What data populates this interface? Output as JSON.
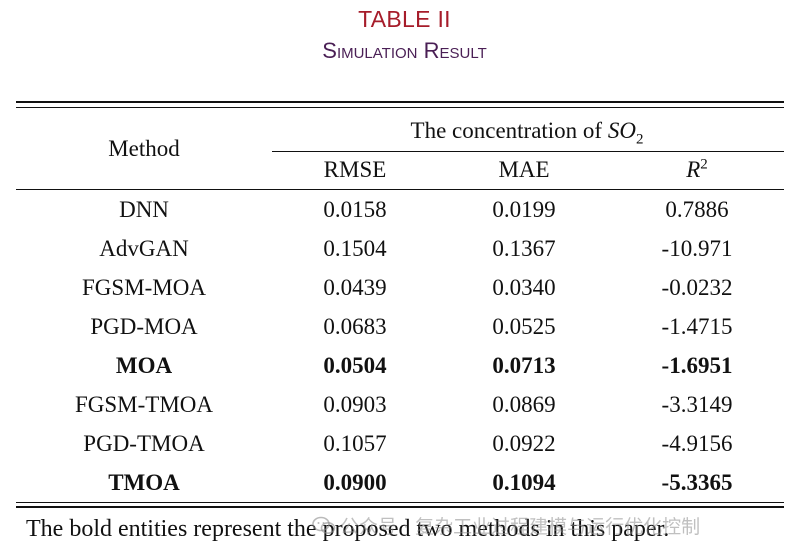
{
  "caption": {
    "label": "TABLE II",
    "title": "Simulation Result"
  },
  "table": {
    "method_header": "Method",
    "group_header": {
      "prefix": "The concentration of ",
      "species": "SO",
      "subscript": "2"
    },
    "columns": [
      {
        "label": "RMSE"
      },
      {
        "label": "MAE"
      },
      {
        "label": "R",
        "superscript": "2"
      }
    ],
    "rows": [
      {
        "method": "DNN",
        "rmse": "0.0158",
        "mae": "0.0199",
        "r2": "0.7886",
        "bold": false
      },
      {
        "method": "AdvGAN",
        "rmse": "0.1504",
        "mae": "0.1367",
        "r2": "-10.971",
        "bold": false
      },
      {
        "method": "FGSM-MOA",
        "rmse": "0.0439",
        "mae": "0.0340",
        "r2": "-0.0232",
        "bold": false
      },
      {
        "method": "PGD-MOA",
        "rmse": "0.0683",
        "mae": "0.0525",
        "r2": "-1.4715",
        "bold": false
      },
      {
        "method": "MOA",
        "rmse": "0.0504",
        "mae": "0.0713",
        "r2": "-1.6951",
        "bold": true
      },
      {
        "method": "FGSM-TMOA",
        "rmse": "0.0903",
        "mae": "0.0869",
        "r2": "-3.3149",
        "bold": false
      },
      {
        "method": "PGD-TMOA",
        "rmse": "0.1057",
        "mae": "0.0922",
        "r2": "-4.9156",
        "bold": false
      },
      {
        "method": "TMOA",
        "rmse": "0.0900",
        "mae": "0.1094",
        "r2": "-5.3365",
        "bold": true
      }
    ]
  },
  "footnote": "The bold entities represent the proposed two methods in this paper.",
  "watermark": {
    "icon": "wechat-icon",
    "text": "公众号 · 复杂工业过程建模与运行优化控制"
  },
  "colors": {
    "caption_label": "#a61c2a",
    "caption_title": "#4a1f55",
    "text": "#111111"
  }
}
